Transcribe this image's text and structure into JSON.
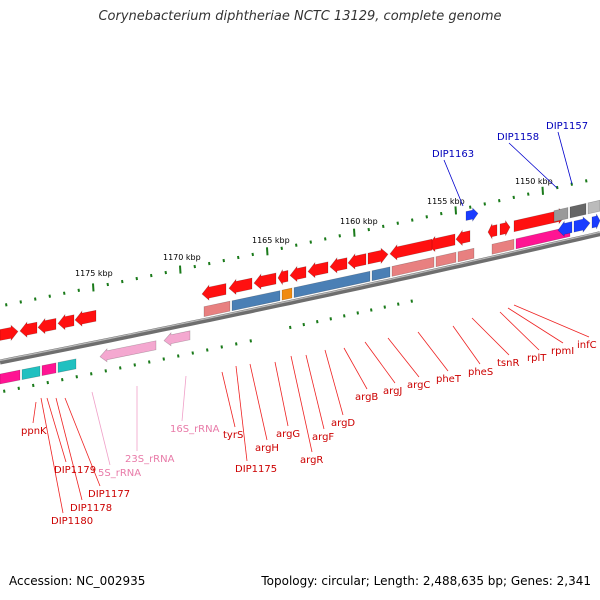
{
  "title": "Corynebacterium diphtheriae NCTC 13129, complete genome",
  "footer": {
    "accession": "Accession: NC_002935",
    "topology": "Topology: circular; Length: 2,488,635 bp; Genes: 2,341"
  },
  "scale_labels": [
    "1175 kbp",
    "1170 kbp",
    "1165 kbp",
    "1160 kbp",
    "1155 kbp",
    "1150 kbp"
  ],
  "colors": {
    "backbone": "#888888",
    "cds_dark": "#ff1010",
    "cds_light": "#e88080",
    "rrna": "#f4a8d0",
    "pseudo": "#4a7fb5",
    "magenta": "#ff1493",
    "cyan": "#20c0c0",
    "gray": "#999999",
    "blue": "#1a3cff",
    "orange": "#f08a10",
    "tick": "#1a7a1a",
    "label_red": "#cc0000",
    "label_pink": "#e87aa8",
    "label_blue": "#0000bb"
  },
  "gene_labels": [
    {
      "text": "ppnK",
      "color": "red"
    },
    {
      "text": "DIP1179",
      "color": "red"
    },
    {
      "text": "DIP1177",
      "color": "red"
    },
    {
      "text": "DIP1178",
      "color": "red"
    },
    {
      "text": "DIP1180",
      "color": "red"
    },
    {
      "text": "5S_rRNA",
      "color": "pink"
    },
    {
      "text": "23S_rRNA",
      "color": "pink"
    },
    {
      "text": "16S_rRNA",
      "color": "pink"
    },
    {
      "text": "tyrS",
      "color": "red"
    },
    {
      "text": "DIP1175",
      "color": "red"
    },
    {
      "text": "argH",
      "color": "red"
    },
    {
      "text": "argG",
      "color": "red"
    },
    {
      "text": "argR",
      "color": "red"
    },
    {
      "text": "argF",
      "color": "red"
    },
    {
      "text": "argD",
      "color": "red"
    },
    {
      "text": "argB",
      "color": "red"
    },
    {
      "text": "argJ",
      "color": "red"
    },
    {
      "text": "argC",
      "color": "red"
    },
    {
      "text": "pheT",
      "color": "red"
    },
    {
      "text": "pheS",
      "color": "red"
    },
    {
      "text": "tsnR",
      "color": "red"
    },
    {
      "text": "rplT",
      "color": "red"
    },
    {
      "text": "rpmI",
      "color": "red"
    },
    {
      "text": "infC",
      "color": "red"
    },
    {
      "text": "DIP1163",
      "color": "blue"
    },
    {
      "text": "DIP1158",
      "color": "blue"
    },
    {
      "text": "DIP1157",
      "color": "blue"
    }
  ]
}
